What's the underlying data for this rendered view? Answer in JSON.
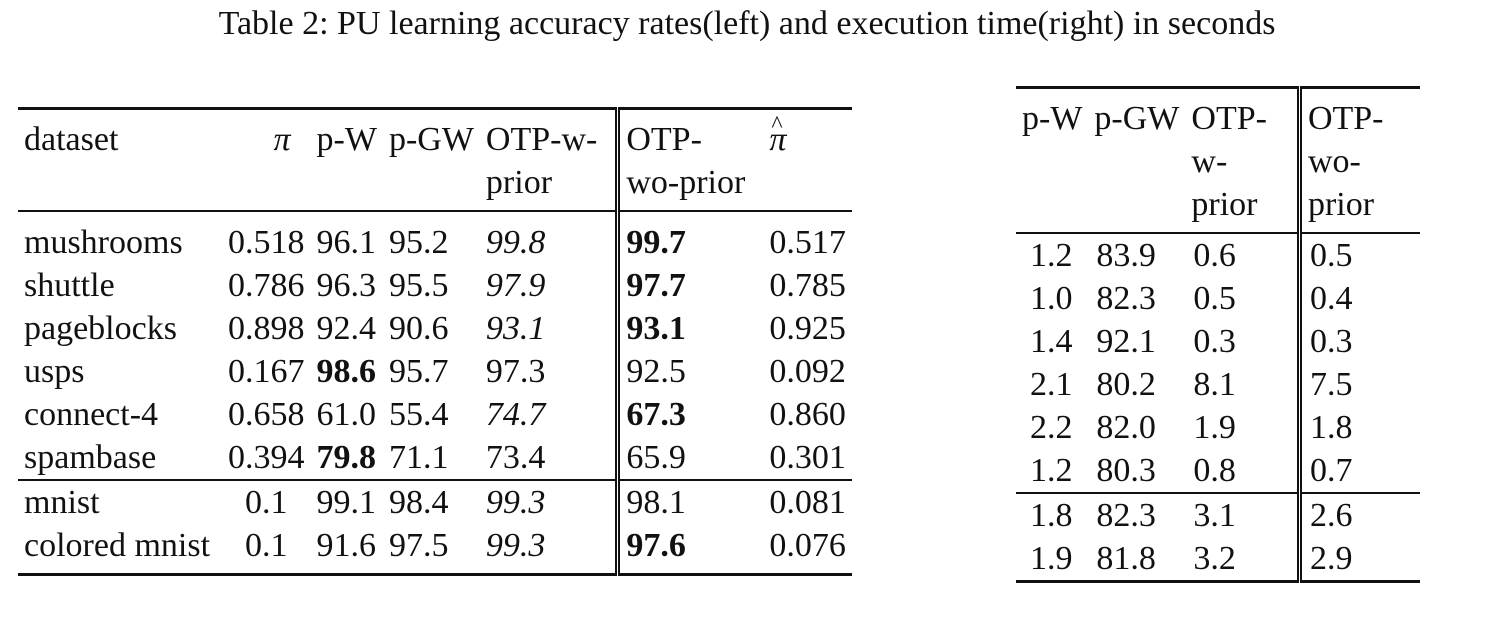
{
  "caption": "Table 2: PU learning accuracy rates(left) and execution time(right) in seconds",
  "left_table": {
    "headers": {
      "dataset": "dataset",
      "pi": "π",
      "pw": "p-W",
      "pgw": "p-GW",
      "otp_w_prior_line1": "OTP-w-",
      "otp_w_prior_line2": "prior",
      "otp_wo_prior_line1": "OTP-",
      "otp_wo_prior_line2": "wo-prior",
      "pi_hat": "π"
    },
    "rows": [
      {
        "dataset": "mushrooms",
        "pi": "0.518",
        "pw": "96.1",
        "pgw": "95.2",
        "otp_w": "99.8",
        "otp_wo": "99.7",
        "pi_hat": "0.517"
      },
      {
        "dataset": "shuttle",
        "pi": "0.786",
        "pw": "96.3",
        "pgw": "95.5",
        "otp_w": "97.9",
        "otp_wo": "97.7",
        "pi_hat": "0.785"
      },
      {
        "dataset": "pageblocks",
        "pi": "0.898",
        "pw": "92.4",
        "pgw": "90.6",
        "otp_w": "93.1",
        "otp_wo": "93.1",
        "pi_hat": "0.925"
      },
      {
        "dataset": "usps",
        "pi": "0.167",
        "pw": "98.6",
        "pgw": "95.7",
        "otp_w": "97.3",
        "otp_wo": "92.5",
        "pi_hat": "0.092"
      },
      {
        "dataset": "connect-4",
        "pi": "0.658",
        "pw": "61.0",
        "pgw": "55.4",
        "otp_w": "74.7",
        "otp_wo": "67.3",
        "pi_hat": "0.860"
      },
      {
        "dataset": "spambase",
        "pi": "0.394",
        "pw": "79.8",
        "pgw": "71.1",
        "otp_w": "73.4",
        "otp_wo": "65.9",
        "pi_hat": "0.301"
      },
      {
        "dataset": "mnist",
        "pi": "0.1",
        "pw": "99.1",
        "pgw": "98.4",
        "otp_w": "99.3",
        "otp_wo": "98.1",
        "pi_hat": "0.081"
      },
      {
        "dataset": "colored mnist",
        "pi": "0.1",
        "pw": "91.6",
        "pgw": "97.5",
        "otp_w": "99.3",
        "otp_wo": "97.6",
        "pi_hat": "0.076"
      }
    ]
  },
  "right_table": {
    "headers": {
      "pw": "p-W",
      "pgw": "p-GW",
      "otp_w_l1": "OTP-",
      "otp_w_l2": "w-",
      "otp_w_l3": "prior",
      "otp_wo_l1": "OTP-",
      "otp_wo_l2": "wo-",
      "otp_wo_l3": "prior"
    },
    "rows": [
      {
        "pw": "1.2",
        "pgw": "83.9",
        "otp_w": "0.6",
        "otp_wo": "0.5"
      },
      {
        "pw": "1.0",
        "pgw": "82.3",
        "otp_w": "0.5",
        "otp_wo": "0.4"
      },
      {
        "pw": "1.4",
        "pgw": "92.1",
        "otp_w": "0.3",
        "otp_wo": "0.3"
      },
      {
        "pw": "2.1",
        "pgw": "80.2",
        "otp_w": "8.1",
        "otp_wo": "7.5"
      },
      {
        "pw": "2.2",
        "pgw": "82.0",
        "otp_w": "1.9",
        "otp_wo": "1.8"
      },
      {
        "pw": "1.2",
        "pgw": "80.3",
        "otp_w": "0.8",
        "otp_wo": "0.7"
      },
      {
        "pw": "1.8",
        "pgw": "82.3",
        "otp_w": "3.1",
        "otp_wo": "2.6"
      },
      {
        "pw": "1.9",
        "pgw": "81.8",
        "otp_w": "3.2",
        "otp_wo": "2.9"
      }
    ]
  }
}
